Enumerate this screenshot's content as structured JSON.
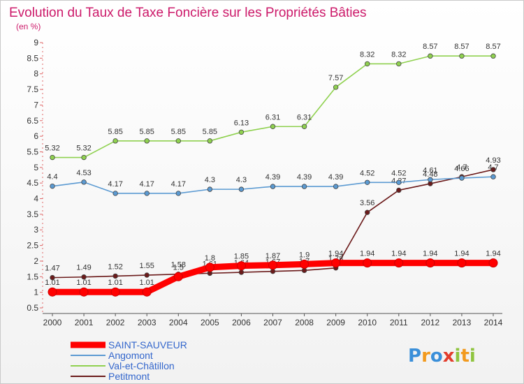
{
  "title": "Evolution du Taux de Taxe Foncière sur les Propriétés Bâties",
  "unit_label": "(en %)",
  "logo_text": "Proxiti",
  "chart_data": {
    "type": "line",
    "x": [
      "2000",
      "2001",
      "2002",
      "2003",
      "2004",
      "2005",
      "2006",
      "2007",
      "2008",
      "2009",
      "2010",
      "2011",
      "2012",
      "2013",
      "2014"
    ],
    "ylim": [
      0.5,
      9
    ],
    "yticks": [
      "0.5",
      "1",
      "1.5",
      "2",
      "2.5",
      "3",
      "3.5",
      "4",
      "4.5",
      "5",
      "5.5",
      "6",
      "6.5",
      "7",
      "7.5",
      "8",
      "8.5",
      "9"
    ],
    "grid": false,
    "legend_position": "bottom-left",
    "series": [
      {
        "name": "SAINT-SAUVEUR",
        "color": "#ff0000",
        "values": [
          1.01,
          1.01,
          1.01,
          1.01,
          1.5,
          1.8,
          1.85,
          1.87,
          1.9,
          1.94,
          1.94,
          1.94,
          1.94,
          1.94,
          1.94
        ],
        "labels": [
          "1.01",
          "1.01",
          "1.01",
          "1.01",
          "1.5",
          "1.8",
          "1.85",
          "1.87",
          "1.9",
          "1.94",
          "1.94",
          "1.94",
          "1.94",
          "1.94",
          "1.94"
        ]
      },
      {
        "name": "Angomont",
        "color": "#5b9ad2",
        "values": [
          4.4,
          4.53,
          4.17,
          4.17,
          4.17,
          4.3,
          4.3,
          4.39,
          4.39,
          4.39,
          4.52,
          4.52,
          4.61,
          4.66,
          4.7
        ],
        "labels": [
          "4.4",
          "4.53",
          "4.17",
          "4.17",
          "4.17",
          "4.3",
          "4.3",
          "4.39",
          "4.39",
          "4.39",
          "4.52",
          "4.52",
          "4.61",
          "4.66",
          "4.7"
        ]
      },
      {
        "name": "Val-et-Châtillon",
        "color": "#8fd14f",
        "values": [
          5.32,
          5.32,
          5.85,
          5.85,
          5.85,
          5.85,
          6.13,
          6.31,
          6.31,
          7.57,
          8.32,
          8.32,
          8.57,
          8.57,
          8.57
        ],
        "labels": [
          "5.32",
          "5.32",
          "5.85",
          "5.85",
          "5.85",
          "5.85",
          "6.13",
          "6.31",
          "6.31",
          "7.57",
          "8.32",
          "8.32",
          "8.57",
          "8.57",
          "8.57"
        ]
      },
      {
        "name": "Petitmont",
        "color": "#6b1a1a",
        "values": [
          1.47,
          1.49,
          1.52,
          1.55,
          1.58,
          1.61,
          1.64,
          1.67,
          1.7,
          1.78,
          3.56,
          4.27,
          4.48,
          4.7,
          4.93
        ],
        "labels": [
          "1.47",
          "1.49",
          "1.52",
          "1.55",
          "1.58",
          "1.61",
          "1.64",
          "1.67",
          "1.7",
          "1.78",
          "3.56",
          "4.27",
          "4.48",
          "4.7",
          "4.93"
        ]
      }
    ]
  }
}
